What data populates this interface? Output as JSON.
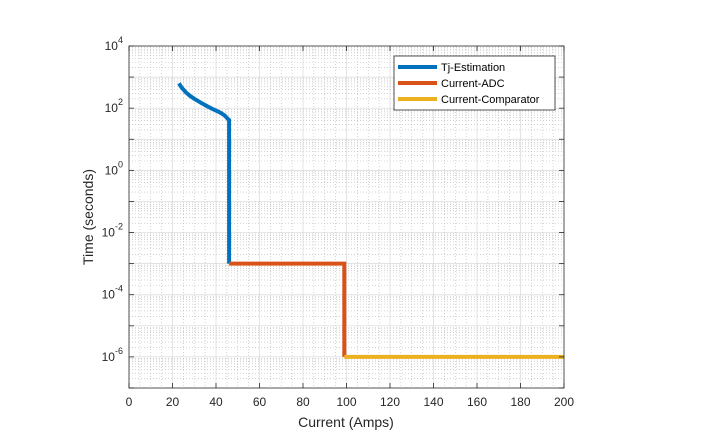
{
  "chart_data": {
    "type": "line",
    "title": "",
    "xlabel": "Current (Amps)",
    "ylabel": "Time (seconds)",
    "xlim": [
      0,
      200
    ],
    "ylim_log10": [
      -7,
      4
    ],
    "yscale": "log",
    "grid": true,
    "minor_grid": true,
    "legend_position": "top-right",
    "x_ticks": [
      0,
      20,
      40,
      60,
      80,
      100,
      120,
      140,
      160,
      180,
      200
    ],
    "y_ticks": [
      {
        "base": "10",
        "exp": "4",
        "value": 10000
      },
      {
        "base": "10",
        "exp": "2",
        "value": 100
      },
      {
        "base": "10",
        "exp": "0",
        "value": 1
      },
      {
        "base": "10",
        "exp": "-2",
        "value": 0.01
      },
      {
        "base": "10",
        "exp": "-4",
        "value": 0.0001
      },
      {
        "base": "10",
        "exp": "-6",
        "value": 1e-06
      }
    ],
    "series": [
      {
        "name": "Tj-Estimation",
        "color": "#0072BD",
        "points": [
          [
            23,
            630
          ],
          [
            24,
            480
          ],
          [
            26,
            330
          ],
          [
            28,
            250
          ],
          [
            30,
            200
          ],
          [
            33,
            150
          ],
          [
            36,
            115
          ],
          [
            39,
            90
          ],
          [
            42,
            72
          ],
          [
            44,
            58
          ],
          [
            45.5,
            45
          ],
          [
            46,
            42
          ],
          [
            46,
            0.001
          ]
        ]
      },
      {
        "name": "Current-ADC",
        "color": "#D95319",
        "points": [
          [
            46,
            0.001
          ],
          [
            99,
            0.001
          ],
          [
            99,
            1e-06
          ]
        ]
      },
      {
        "name": "Current-Comparator",
        "color": "#EDB120",
        "points": [
          [
            99,
            1e-06
          ],
          [
            200,
            1e-06
          ]
        ]
      }
    ]
  }
}
